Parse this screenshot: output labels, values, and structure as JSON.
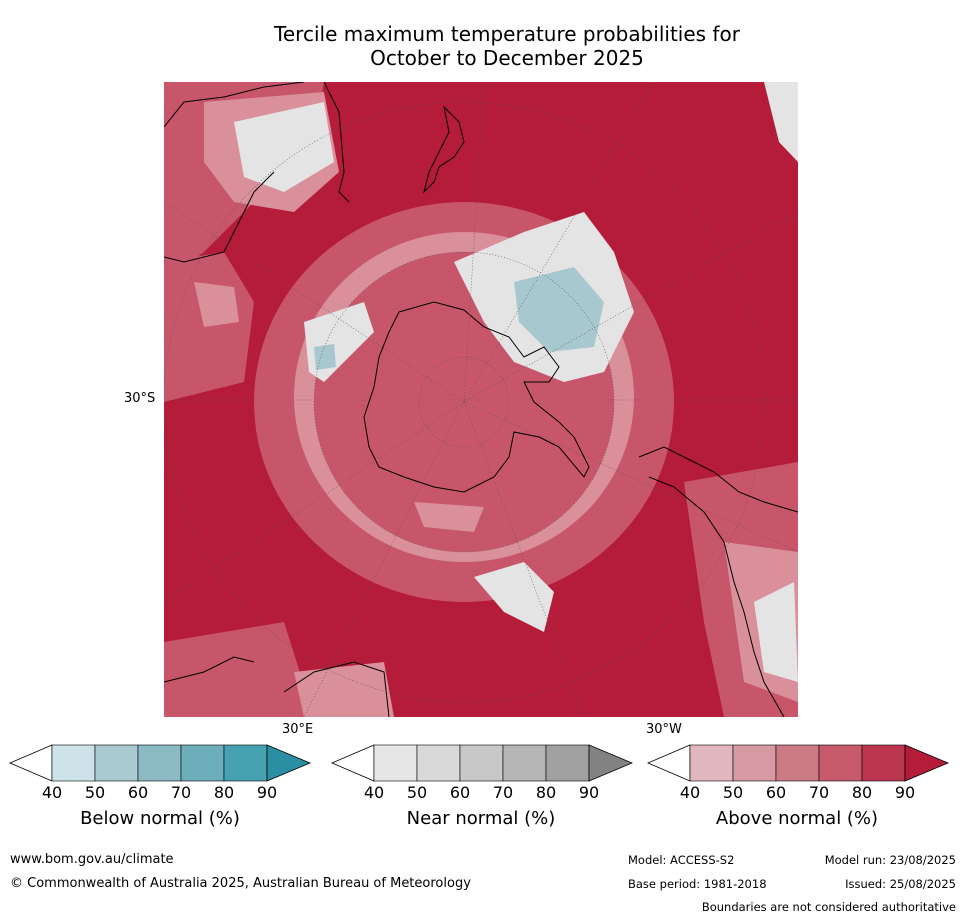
{
  "title_line1": "Tercile maximum temperature probabilities for",
  "title_line2": "October to December 2025",
  "map": {
    "lat_label": "30°S",
    "lon_label_east": "30°E",
    "lon_label_west": "30°W",
    "colors": {
      "above_extreme": "#b41c3a",
      "above_mid": "#c8566a",
      "above_low": "#d9909b",
      "near_light": "#e4e4e4",
      "below_light": "#a8c8d0",
      "coast": "#000000"
    }
  },
  "legends": [
    {
      "label": "Below normal (%)",
      "ticks": [
        "40",
        "50",
        "60",
        "70",
        "80",
        "90"
      ],
      "colors": [
        "#ffffff",
        "#cde3e9",
        "#a9cad1",
        "#8bbac3",
        "#6caeb9",
        "#46a2b1",
        "#2b8fa3"
      ]
    },
    {
      "label": "Near normal (%)",
      "ticks": [
        "40",
        "50",
        "60",
        "70",
        "80",
        "90"
      ],
      "colors": [
        "#ffffff",
        "#e6e6e6",
        "#d9d9d9",
        "#c8c8c8",
        "#b5b5b5",
        "#a1a1a1",
        "#828282"
      ]
    },
    {
      "label": "Above normal (%)",
      "ticks": [
        "40",
        "50",
        "60",
        "70",
        "80",
        "90"
      ],
      "colors": [
        "#ffffff",
        "#e1b7bd",
        "#d79aa3",
        "#cc7a85",
        "#c65a6a",
        "#bd3650",
        "#b41c3a"
      ]
    }
  ],
  "footer": {
    "url": "www.bom.gov.au/climate",
    "copyright": "© Commonwealth of Australia 2025, Australian Bureau of Meteorology",
    "model": "Model: ACCESS-S2",
    "base_period": "Base period: 1981-2018",
    "model_run": "Model run: 23/08/2025",
    "issued": "Issued: 25/08/2025",
    "disclaimer": "Boundaries are not considered authoritative"
  }
}
